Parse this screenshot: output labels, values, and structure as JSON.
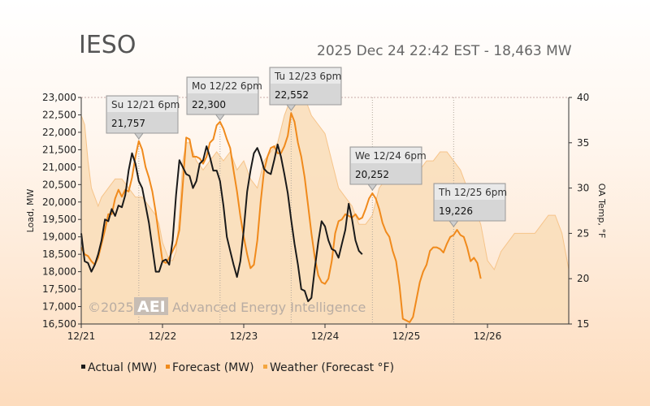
{
  "header": {
    "title": "IESO",
    "status": "2025 Dec 24 22:42 EST - 18,463 MW"
  },
  "watermark": {
    "copyright": "©2025",
    "logo": "AEI",
    "company": "Advanced Energy Intelligence"
  },
  "colors": {
    "actual": "#1a1a1a",
    "forecast": "#f08a1c",
    "weather_fill": "#f9ddb8",
    "weather_line": "#f6c48a",
    "tooltip_highlight": "#cc1111"
  },
  "chart_data": {
    "type": "line",
    "title": "IESO",
    "ylabel": "Load, MW",
    "y2label": "OA Temp, °F",
    "ylim": [
      16500,
      23000
    ],
    "y2lim": [
      15,
      40
    ],
    "yticks": [
      "23,000",
      "22,500",
      "22,000",
      "21,500",
      "21,000",
      "20,500",
      "20,000",
      "19,500",
      "19,000",
      "18,500",
      "18,000",
      "17,500",
      "17,000",
      "16,500"
    ],
    "y2ticks": [
      "40",
      "35",
      "30",
      "25",
      "20",
      "15"
    ],
    "xlim": [
      0,
      144
    ],
    "xticks": [
      {
        "x": 0,
        "label": "12/21"
      },
      {
        "x": 24,
        "label": "12/22"
      },
      {
        "x": 48,
        "label": "12/23"
      },
      {
        "x": 72,
        "label": "12/24"
      },
      {
        "x": 96,
        "label": "12/25"
      },
      {
        "x": 120,
        "label": "12/26"
      }
    ],
    "series": [
      {
        "name": "Weather (Forecast °F)",
        "legend": "Weather (Forecast °F)",
        "axis": "right",
        "points": [
          [
            0,
            38
          ],
          [
            1,
            37
          ],
          [
            2,
            33
          ],
          [
            3,
            30
          ],
          [
            4,
            29
          ],
          [
            5,
            28
          ],
          [
            6,
            29
          ],
          [
            8,
            30
          ],
          [
            10,
            31
          ],
          [
            12,
            31
          ],
          [
            14,
            30
          ],
          [
            16,
            29
          ],
          [
            18,
            29
          ],
          [
            20,
            28
          ],
          [
            22,
            27
          ],
          [
            23,
            26
          ],
          [
            24,
            24
          ],
          [
            25,
            23
          ],
          [
            26,
            22
          ],
          [
            27,
            22
          ],
          [
            28,
            23
          ],
          [
            29,
            27
          ],
          [
            30,
            33
          ],
          [
            31,
            35
          ],
          [
            32,
            35
          ],
          [
            34,
            33
          ],
          [
            36,
            32
          ],
          [
            38,
            33
          ],
          [
            40,
            34
          ],
          [
            42,
            33
          ],
          [
            44,
            34
          ],
          [
            45,
            33
          ],
          [
            46,
            32
          ],
          [
            48,
            33
          ],
          [
            50,
            31
          ],
          [
            52,
            30
          ],
          [
            54,
            33
          ],
          [
            56,
            34
          ],
          [
            58,
            35
          ],
          [
            60,
            38
          ],
          [
            62,
            40
          ],
          [
            64,
            40
          ],
          [
            66,
            40
          ],
          [
            68,
            38
          ],
          [
            70,
            37
          ],
          [
            72,
            36
          ],
          [
            74,
            33
          ],
          [
            76,
            30
          ],
          [
            78,
            29
          ],
          [
            80,
            28
          ],
          [
            81,
            27
          ],
          [
            82,
            26
          ],
          [
            84,
            26
          ],
          [
            86,
            27
          ],
          [
            88,
            30
          ],
          [
            90,
            31
          ],
          [
            92,
            31
          ],
          [
            94,
            31
          ],
          [
            96,
            31
          ],
          [
            98,
            32
          ],
          [
            100,
            32
          ],
          [
            102,
            33
          ],
          [
            104,
            33
          ],
          [
            106,
            34
          ],
          [
            108,
            34
          ],
          [
            110,
            33
          ],
          [
            112,
            32
          ],
          [
            114,
            30
          ],
          [
            116,
            28
          ],
          [
            118,
            26
          ],
          [
            120,
            22
          ],
          [
            122,
            21
          ],
          [
            124,
            23
          ],
          [
            126,
            24
          ],
          [
            128,
            25
          ],
          [
            130,
            25
          ],
          [
            132,
            25
          ],
          [
            134,
            25
          ],
          [
            136,
            26
          ],
          [
            138,
            27
          ],
          [
            140,
            27
          ],
          [
            142,
            25
          ],
          [
            144,
            21
          ]
        ]
      },
      {
        "name": "Forecast (MW)",
        "legend": "Forecast (MW)",
        "axis": "left",
        "points": [
          [
            0,
            18700
          ],
          [
            1,
            18500
          ],
          [
            2,
            18450
          ],
          [
            3,
            18300
          ],
          [
            4,
            18200
          ],
          [
            5,
            18400
          ],
          [
            6,
            18800
          ],
          [
            7,
            19200
          ],
          [
            8,
            19650
          ],
          [
            9,
            19650
          ],
          [
            10,
            20100
          ],
          [
            11,
            20350
          ],
          [
            12,
            20150
          ],
          [
            13,
            20350
          ],
          [
            14,
            20300
          ],
          [
            15,
            20700
          ],
          [
            16,
            21300
          ],
          [
            17,
            21750
          ],
          [
            18,
            21500
          ],
          [
            19,
            21000
          ],
          [
            20,
            20700
          ],
          [
            21,
            20300
          ],
          [
            22,
            19700
          ],
          [
            23,
            19000
          ],
          [
            24,
            18300
          ],
          [
            25,
            18250
          ],
          [
            26,
            18400
          ],
          [
            27,
            18600
          ],
          [
            28,
            18800
          ],
          [
            29,
            19200
          ],
          [
            30,
            20500
          ],
          [
            31,
            21850
          ],
          [
            32,
            21800
          ],
          [
            33,
            21300
          ],
          [
            34,
            21300
          ],
          [
            35,
            21250
          ],
          [
            36,
            21100
          ],
          [
            37,
            21300
          ],
          [
            38,
            21700
          ],
          [
            39,
            21800
          ],
          [
            40,
            22200
          ],
          [
            41,
            22300
          ],
          [
            42,
            22100
          ],
          [
            43,
            21800
          ],
          [
            44,
            21550
          ],
          [
            45,
            20900
          ],
          [
            46,
            20300
          ],
          [
            47,
            19600
          ],
          [
            48,
            19000
          ],
          [
            49,
            18500
          ],
          [
            50,
            18100
          ],
          [
            51,
            18200
          ],
          [
            52,
            18900
          ],
          [
            53,
            20000
          ],
          [
            54,
            20900
          ],
          [
            55,
            21300
          ],
          [
            56,
            21550
          ],
          [
            57,
            21600
          ],
          [
            58,
            21400
          ],
          [
            59,
            21400
          ],
          [
            60,
            21600
          ],
          [
            61,
            21900
          ],
          [
            62,
            22550
          ],
          [
            63,
            22300
          ],
          [
            64,
            21700
          ],
          [
            65,
            21300
          ],
          [
            66,
            20700
          ],
          [
            67,
            19900
          ],
          [
            68,
            19100
          ],
          [
            69,
            18400
          ],
          [
            70,
            17900
          ],
          [
            71,
            17700
          ],
          [
            72,
            17650
          ],
          [
            73,
            17800
          ],
          [
            74,
            18300
          ],
          [
            75,
            19100
          ],
          [
            76,
            19450
          ],
          [
            77,
            19500
          ],
          [
            78,
            19650
          ],
          [
            79,
            19600
          ],
          [
            80,
            19550
          ],
          [
            81,
            19650
          ],
          [
            82,
            19500
          ],
          [
            83,
            19550
          ],
          [
            84,
            19800
          ],
          [
            85,
            20100
          ],
          [
            86,
            20250
          ],
          [
            87,
            20100
          ],
          [
            88,
            19800
          ],
          [
            89,
            19400
          ],
          [
            90,
            19150
          ],
          [
            91,
            19000
          ],
          [
            92,
            18600
          ],
          [
            93,
            18300
          ],
          [
            94,
            17600
          ],
          [
            95,
            16650
          ],
          [
            96,
            16600
          ],
          [
            97,
            16550
          ],
          [
            98,
            16700
          ],
          [
            99,
            17200
          ],
          [
            100,
            17700
          ],
          [
            101,
            18000
          ],
          [
            102,
            18200
          ],
          [
            103,
            18600
          ],
          [
            104,
            18700
          ],
          [
            105,
            18700
          ],
          [
            106,
            18650
          ],
          [
            107,
            18550
          ],
          [
            108,
            18800
          ],
          [
            109,
            19000
          ],
          [
            110,
            19050
          ],
          [
            111,
            19200
          ],
          [
            112,
            19050
          ],
          [
            113,
            19000
          ],
          [
            114,
            18700
          ],
          [
            115,
            18300
          ],
          [
            116,
            18400
          ],
          [
            117,
            18250
          ],
          [
            118,
            17800
          ]
        ]
      },
      {
        "name": "Actual (MW)",
        "legend": "Actual (MW)",
        "axis": "left",
        "points": [
          [
            0,
            19100
          ],
          [
            1,
            18300
          ],
          [
            2,
            18250
          ],
          [
            3,
            18000
          ],
          [
            4,
            18200
          ],
          [
            5,
            18500
          ],
          [
            6,
            18900
          ],
          [
            7,
            19500
          ],
          [
            8,
            19450
          ],
          [
            9,
            19800
          ],
          [
            10,
            19600
          ],
          [
            11,
            19900
          ],
          [
            12,
            19850
          ],
          [
            13,
            20200
          ],
          [
            14,
            20900
          ],
          [
            15,
            21400
          ],
          [
            16,
            21100
          ],
          [
            17,
            20600
          ],
          [
            18,
            20400
          ],
          [
            19,
            19900
          ],
          [
            20,
            19400
          ],
          [
            21,
            18700
          ],
          [
            22,
            18000
          ],
          [
            23,
            18000
          ],
          [
            24,
            18300
          ],
          [
            25,
            18350
          ],
          [
            26,
            18200
          ],
          [
            27,
            18900
          ],
          [
            28,
            20200
          ],
          [
            29,
            21200
          ],
          [
            30,
            21000
          ],
          [
            31,
            20800
          ],
          [
            32,
            20750
          ],
          [
            33,
            20400
          ],
          [
            34,
            20600
          ],
          [
            35,
            21100
          ],
          [
            36,
            21200
          ],
          [
            37,
            21600
          ],
          [
            38,
            21300
          ],
          [
            39,
            20900
          ],
          [
            40,
            20900
          ],
          [
            41,
            20600
          ],
          [
            42,
            19900
          ],
          [
            43,
            19000
          ],
          [
            44,
            18600
          ],
          [
            45,
            18200
          ],
          [
            46,
            17850
          ],
          [
            47,
            18300
          ],
          [
            48,
            19200
          ],
          [
            49,
            20300
          ],
          [
            50,
            20900
          ],
          [
            51,
            21400
          ],
          [
            52,
            21550
          ],
          [
            53,
            21300
          ],
          [
            54,
            20950
          ],
          [
            55,
            20850
          ],
          [
            56,
            20800
          ],
          [
            57,
            21200
          ],
          [
            58,
            21650
          ],
          [
            59,
            21300
          ],
          [
            60,
            20800
          ],
          [
            61,
            20250
          ],
          [
            62,
            19500
          ],
          [
            63,
            18800
          ],
          [
            64,
            18200
          ],
          [
            65,
            17500
          ],
          [
            66,
            17450
          ],
          [
            67,
            17150
          ],
          [
            68,
            17250
          ],
          [
            69,
            18100
          ],
          [
            70,
            18850
          ],
          [
            71,
            19450
          ],
          [
            72,
            19300
          ],
          [
            73,
            18900
          ],
          [
            74,
            18650
          ],
          [
            75,
            18600
          ],
          [
            76,
            18400
          ],
          [
            77,
            18800
          ],
          [
            78,
            19200
          ],
          [
            79,
            19950
          ],
          [
            80,
            19500
          ],
          [
            81,
            18900
          ],
          [
            82,
            18600
          ],
          [
            83,
            18500
          ]
        ]
      }
    ],
    "callouts": [
      {
        "date": "Su 12/21 6pm",
        "value": "21,757",
        "x": 17,
        "highlight": false
      },
      {
        "date": "Mo 12/22 6pm",
        "value": "22,300",
        "x": 41,
        "highlight": false
      },
      {
        "date": "Tu 12/23 6pm",
        "value": "22,552",
        "x": 62,
        "highlight": false
      },
      {
        "date": "We 12/24 6pm",
        "value": "20,252",
        "x": 86,
        "highlight": true
      },
      {
        "date": "Th 12/25 6pm",
        "value": "19,226",
        "x": 110,
        "highlight": false
      }
    ]
  }
}
